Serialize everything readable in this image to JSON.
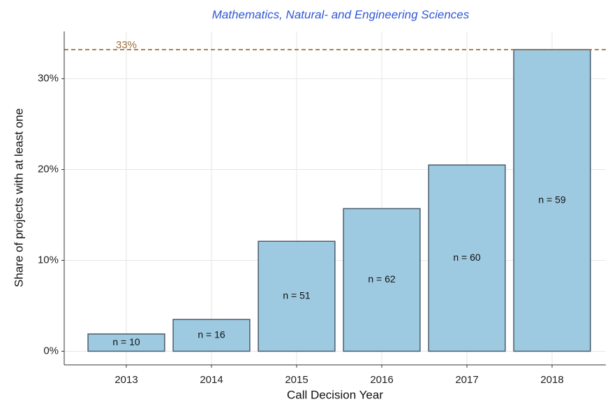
{
  "chart_data": {
    "type": "bar",
    "title": "Mathematics, Natural- and Engineering Sciences",
    "x_label": "Call Decision Year",
    "y_label": "Share of projects with at least one",
    "categories": [
      "2013",
      "2014",
      "2015",
      "2016",
      "2017",
      "2018"
    ],
    "values": [
      1.9,
      3.5,
      12.1,
      15.7,
      20.5,
      33.2
    ],
    "bar_labels": [
      "n = 10",
      "n = 16",
      "n = 51",
      "n = 62",
      "n = 60",
      "n = 59"
    ],
    "color": "#9ecae1",
    "reference_line": {
      "value": 33.2,
      "label": "33%",
      "color": "#a0703a"
    },
    "ylim": [
      -1.5,
      35.2
    ],
    "yticks": [
      {
        "value": 0,
        "label": "0%"
      },
      {
        "value": 10,
        "label": "10%"
      },
      {
        "value": 20,
        "label": "20%"
      },
      {
        "value": 30,
        "label": "30%"
      }
    ],
    "grid": true
  }
}
